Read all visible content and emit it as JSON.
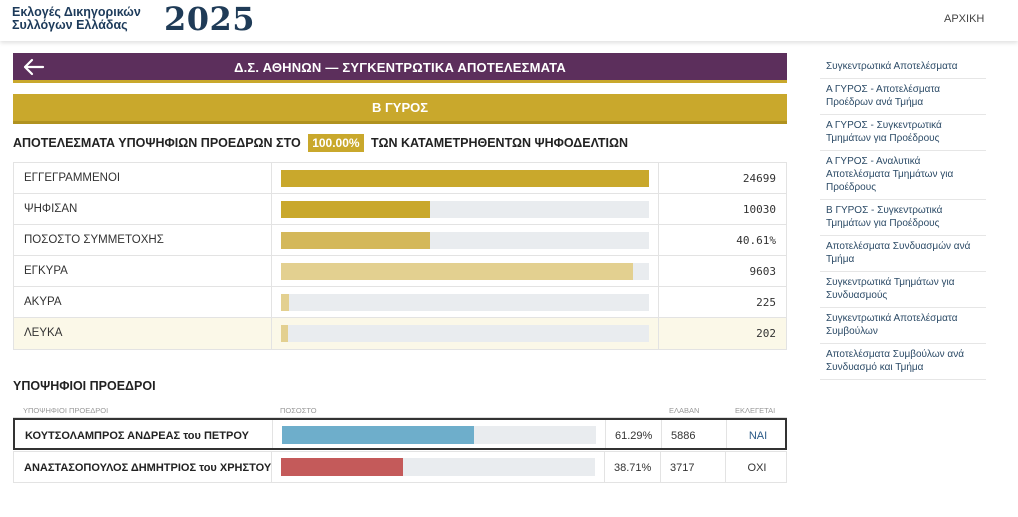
{
  "header": {
    "logo_line1": "Εκλογές Δικηγορικών",
    "logo_line2": "Συλλόγων Ελλάδας",
    "logo_year": "2025",
    "nav_home": "ΑΡΧΙΚΗ"
  },
  "titlebar": {
    "title": "Δ.Σ. ΑΘΗΝΩΝ — ΣΥΓΚΕΝΤΡΩΤΙΚΑ ΑΠΟΤΕΛΕΣΜΑΤΑ"
  },
  "round": {
    "label": "Β ΓΥΡΟΣ"
  },
  "results": {
    "heading_before": "ΑΠΟΤΕΛΕΣΜΑΤΑ ΥΠΟΨΗΦΙΩΝ ΠΡΟΕΔΡΩΝ ΣΤΟ",
    "heading_pct": "100.00%",
    "heading_after": "ΤΩΝ ΚΑΤΑΜΕΤΡΗΘΕΝΤΩΝ ΨΗΦΟΔΕΛΤΙΩΝ"
  },
  "stats": [
    {
      "label": "ΕΓΓΕΓΡΑΜΜΕΝΟΙ",
      "value": "24699",
      "fill": 1.0,
      "color": "#c9a82c"
    },
    {
      "label": "ΨΗΦΙΣΑΝ",
      "value": "10030",
      "fill": 0.406,
      "color": "#c9a82c"
    },
    {
      "label": "ΠΟΣΟΣΤΟ ΣΥΜΜΕΤΟΧΗΣ",
      "value": "40.61%",
      "fill": 0.406,
      "color": "#d4b85a"
    },
    {
      "label": "ΕΓΚΥΡΑ",
      "value": "9603",
      "fill": 0.957,
      "color": "#e3d090"
    },
    {
      "label": "ΑΚΥΡΑ",
      "value": "225",
      "fill": 0.022,
      "color": "#e3d090"
    },
    {
      "label": "ΛΕΥΚΑ",
      "value": "202",
      "fill": 0.02,
      "color": "#e3d090"
    }
  ],
  "candidates": {
    "heading": "ΥΠΟΨΗΦΙΟΙ ΠΡΟΕΔΡΟΙ",
    "col_name": "ΥΠΟΨΗΦΙΟΙ ΠΡΟΕΔΡΟΙ",
    "col_pct": "ΠΟΣΟΣΤΟ",
    "col_votes": "ΕΛΑΒΑΝ",
    "col_elected": "ΕΚΛΕΓΕΤΑΙ",
    "rows": [
      {
        "name": "ΚΟΥΤΣΟΛΑΜΠΡΟΣ ΑΝΔΡΕΑΣ του ΠΕΤΡΟΥ",
        "pct": "61.29%",
        "fill": 0.6129,
        "votes": "5886",
        "elected": "ΝΑΙ",
        "color": "#6eaecb",
        "elected_color": "#2b5a87",
        "winner": true
      },
      {
        "name": "ΑΝΑΣΤΑΣΟΠΟΥΛΟΣ ΔΗΜΗΤΡΙΟΣ του ΧΡΗΣΤΟΥ",
        "pct": "38.71%",
        "fill": 0.3871,
        "votes": "3717",
        "elected": "ΟΧΙ",
        "color": "#c45a5a",
        "elected_color": "#333333",
        "winner": false
      }
    ]
  },
  "sidebar": {
    "items": [
      "Συγκεντρωτικά Αποτελέσματα",
      "Α ΓΥΡΟΣ - Αποτελέσματα Προέδρων ανά Τμήμα",
      "Α ΓΥΡΟΣ - Συγκεντρωτικά Τμημάτων για Προέδρους",
      "Α ΓΥΡΟΣ - Αναλυτικά Αποτελέσματα Τμημάτων για Προέδρους",
      "Β ΓΥΡΟΣ - Συγκεντρωτικά Τμημάτων για Προέδρους",
      "Αποτελέσματα Συνδυασμών ανά Τμήμα",
      "Συγκεντρωτικά Τμημάτων για Συνδυασμούς",
      "Συγκεντρωτικά Αποτελέσματα Συμβούλων",
      "Αποτελέσματα Συμβούλων ανά Συνδυασμό και Τμήμα"
    ]
  }
}
